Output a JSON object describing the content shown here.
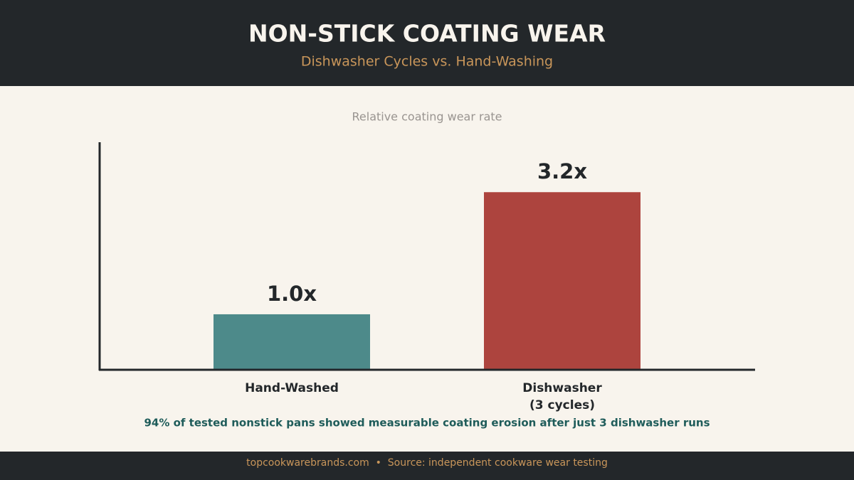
{
  "chart_data": {
    "type": "bar",
    "title": "NON-STICK COATING WEAR",
    "subtitle": "Dishwasher Cycles vs. Hand-Washing",
    "y_label": "Relative coating wear rate",
    "categories": [
      "Hand-Washed",
      "Dishwasher\n(3 cycles)"
    ],
    "values": [
      1.0,
      3.2
    ],
    "value_labels": [
      "1.0x",
      "3.2x"
    ],
    "colors": [
      "#4d8a8a",
      "#ad443e"
    ],
    "ylim": [
      0,
      4.1
    ],
    "annotation": "94% of tested nonstick pans showed measurable coating erosion after just 3 dishwasher runs",
    "footer": "topcookwarebrands.com  •  Source: independent cookware wear testing"
  }
}
